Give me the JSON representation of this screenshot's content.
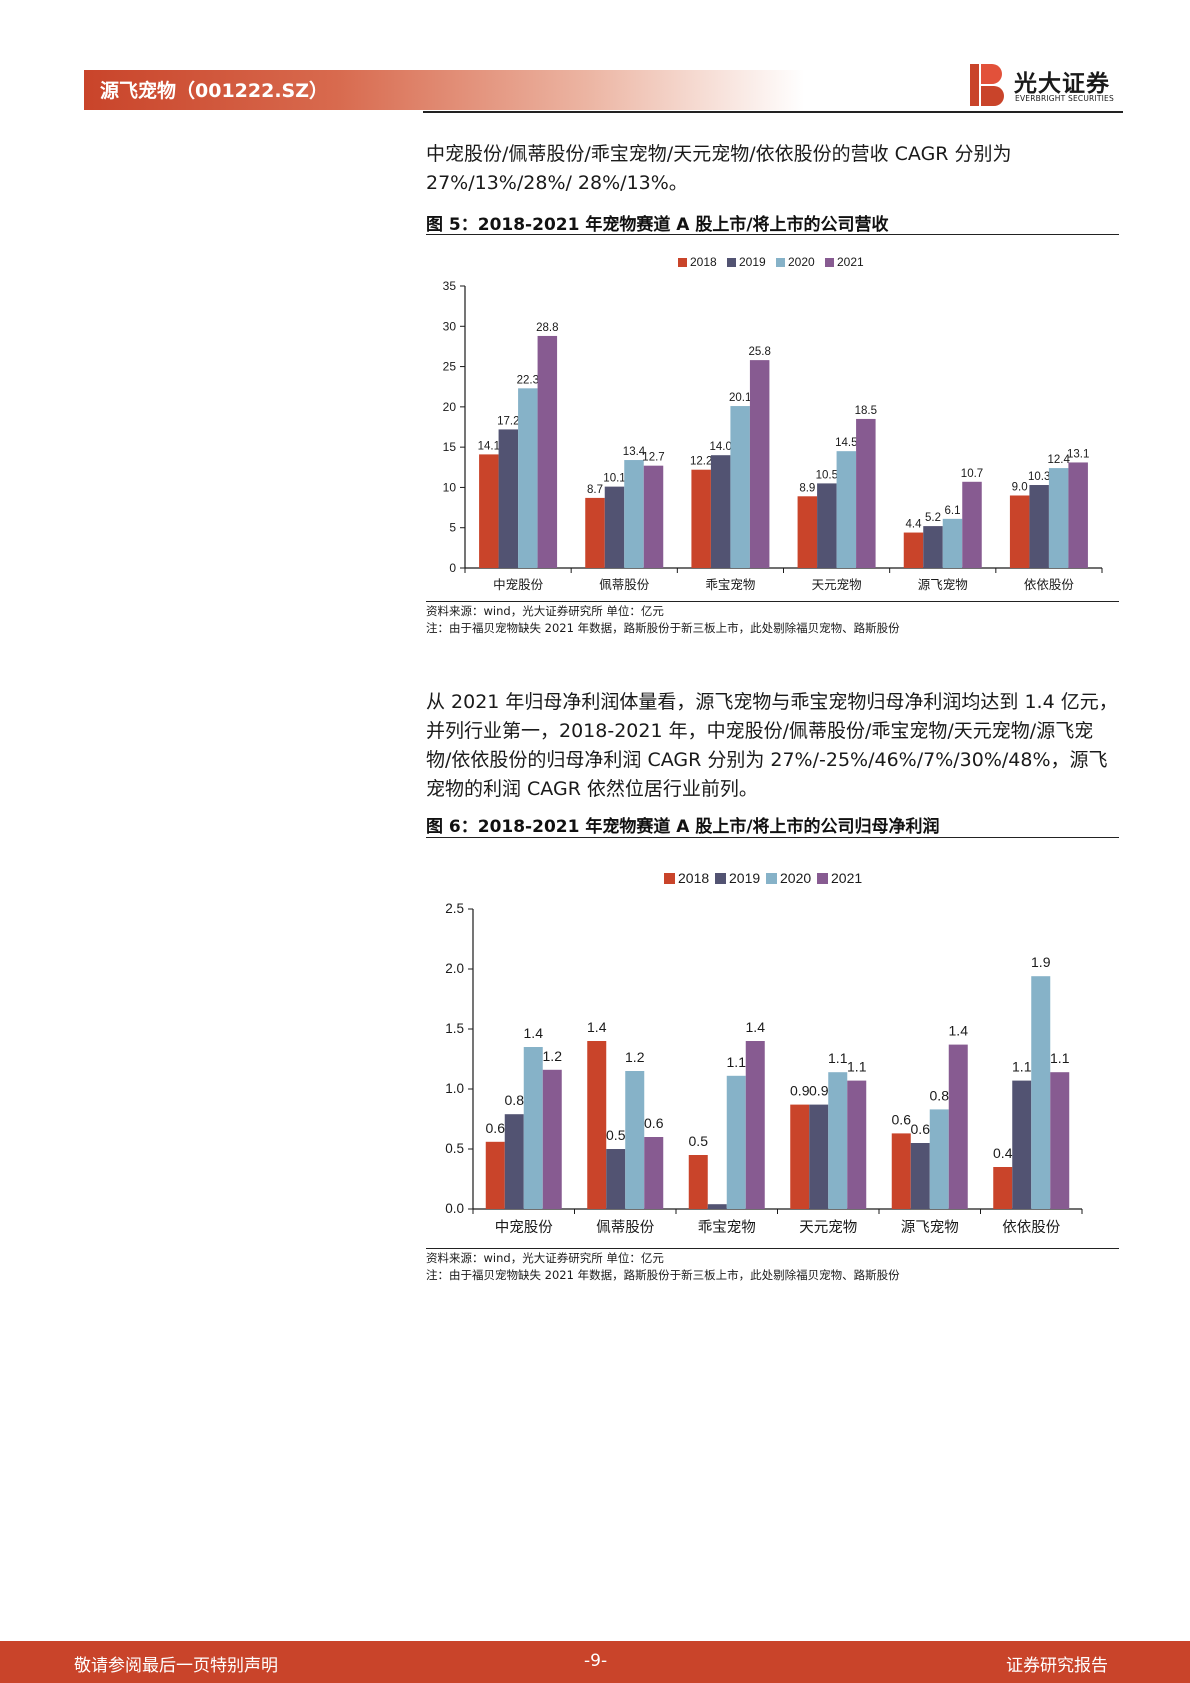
{
  "header": {
    "title": "源飞宠物（001222.SZ）",
    "logo_cn": "光大证券",
    "logo_en": "EVERBRIGHT SECURITIES"
  },
  "para1": {
    "lines": [
      "中宠股份/佩蒂股份/乖宝宠物/天元宠物/依依股份的营收 CAGR 分别为",
      "27%/13%/28%/ 28%/13%。"
    ]
  },
  "fig5": {
    "title": "图 5：2018-2021 年宠物赛道 A 股上市/将上市的公司营收",
    "source": "资料来源：wind，光大证券研究所   单位：亿元",
    "note": "注：由于福贝宠物缺失 2021 年数据，路斯股份于新三板上市，此处剔除福贝宠物、路斯股份"
  },
  "para2": {
    "lines": [
      "从 2021 年归母净利润体量看，源飞宠物与乖宝宠物归母净利润均达到 1.4 亿元，",
      "并列行业第一，2018-2021 年，中宠股份/佩蒂股份/乖宝宠物/天元宠物/源飞宠",
      "物/依依股份的归母净利润 CAGR 分别为 27%/-25%/46%/7%/30%/48%，源飞",
      "宠物的利润 CAGR 依然位居行业前列。"
    ]
  },
  "fig6": {
    "title": "图 6：2018-2021 年宠物赛道 A 股上市/将上市的公司归母净利润",
    "source": "资料来源：wind，光大证券研究所   单位：亿元",
    "note": "注：由于福贝宠物缺失 2021 年数据，路斯股份于新三板上市，此处剔除福贝宠物、路斯股份"
  },
  "footer": {
    "left": "敬请参阅最后一页特别声明",
    "center": "-9-",
    "right": "证券研究报告"
  },
  "colors": {
    "brand_red": "#c9442a",
    "s2018": "#c9442a",
    "s2019": "#525372",
    "s2020": "#86b2c8",
    "s2021": "#875b91"
  },
  "chart_data": [
    {
      "type": "bar",
      "categories": [
        "中宠股份",
        "佩蒂股份",
        "乖宝宠物",
        "天元宠物",
        "源飞宠物",
        "依依股份"
      ],
      "series": [
        {
          "name": "2018",
          "values": [
            14.1,
            8.7,
            12.2,
            8.9,
            4.4,
            9.0
          ],
          "labels": [
            "14.1",
            "8.7",
            "12.2",
            "8.9",
            "4.4",
            "9.0"
          ]
        },
        {
          "name": "2019",
          "values": [
            17.2,
            10.1,
            14.0,
            10.5,
            5.2,
            10.3
          ],
          "labels": [
            "17.2",
            "10.1",
            "14.0",
            "10.5",
            "5.2",
            "10.3"
          ]
        },
        {
          "name": "2020",
          "values": [
            22.3,
            13.4,
            20.1,
            14.5,
            6.1,
            12.4
          ],
          "labels": [
            "22.3",
            "13.4",
            "20.1",
            "14.5",
            "6.1",
            "12.4"
          ]
        },
        {
          "name": "2021",
          "values": [
            28.8,
            12.7,
            25.8,
            18.5,
            10.7,
            13.1
          ],
          "labels": [
            "28.8",
            "12.7",
            "25.8",
            "18.5",
            "10.7",
            "13.1"
          ]
        }
      ],
      "yticks": [
        "0",
        "5",
        "10",
        "15",
        "20",
        "25",
        "30",
        "35"
      ],
      "ylim": [
        0,
        35
      ],
      "legend": "top-center"
    },
    {
      "type": "bar",
      "categories": [
        "中宠股份",
        "佩蒂股份",
        "乖宝宠物",
        "天元宠物",
        "源飞宠物",
        "依依股份"
      ],
      "series": [
        {
          "name": "2018",
          "values": [
            0.56,
            1.4,
            0.45,
            0.87,
            0.63,
            0.35
          ],
          "labels": [
            "0.6",
            "1.4",
            "0.5",
            "0.9",
            "0.6",
            "0.4"
          ]
        },
        {
          "name": "2019",
          "values": [
            0.79,
            0.5,
            0.04,
            0.87,
            0.55,
            1.07
          ],
          "labels": [
            "0.8",
            "0.5",
            "",
            "0.9",
            "0.6",
            "1.1"
          ]
        },
        {
          "name": "2020",
          "values": [
            1.35,
            1.15,
            1.11,
            1.14,
            0.83,
            1.94
          ],
          "labels": [
            "1.4",
            "1.2",
            "1.1",
            "1.1",
            "0.8",
            "1.9"
          ]
        },
        {
          "name": "2021",
          "values": [
            1.16,
            0.6,
            1.4,
            1.07,
            1.37,
            1.14
          ],
          "labels": [
            "1.2",
            "0.6",
            "1.4",
            "1.1",
            "1.4",
            "1.1"
          ]
        }
      ],
      "yticks": [
        "0.0",
        "0.5",
        "1.0",
        "1.5",
        "2.0",
        "2.5"
      ],
      "ylim": [
        0,
        2.5
      ],
      "legend": "top-center"
    }
  ]
}
